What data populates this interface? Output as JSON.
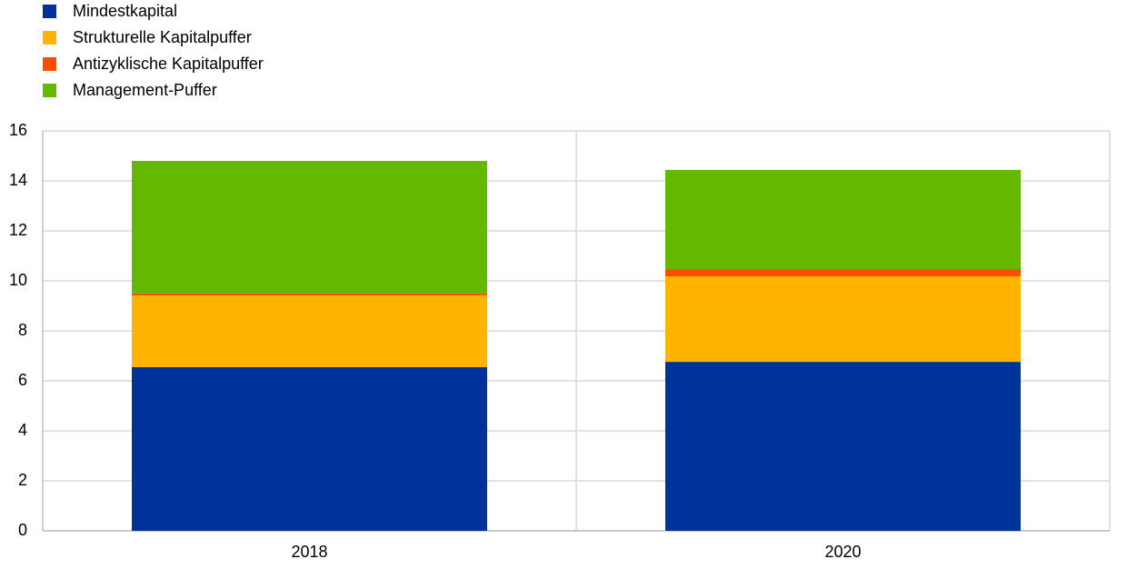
{
  "chart_data": {
    "type": "stacked_bar",
    "categories": [
      "2018",
      "2020"
    ],
    "series": [
      {
        "name": "Mindestkapital",
        "color": "#003299",
        "values": [
          6.55,
          6.76
        ]
      },
      {
        "name": "Strukturelle Kapitalpuffer",
        "color": "#ffb400",
        "values": [
          2.87,
          3.42
        ]
      },
      {
        "name": "Antizyklische Kapitalpuffer",
        "color": "#ff4b00",
        "values": [
          0.08,
          0.29
        ]
      },
      {
        "name": "Management-Puffer",
        "color": "#65b800",
        "values": [
          5.3,
          3.97
        ]
      }
    ],
    "ylim": [
      0,
      16
    ],
    "yticks": [
      0,
      2,
      4,
      6,
      8,
      10,
      12,
      14,
      16
    ],
    "grid": true,
    "legend": "top-left"
  }
}
